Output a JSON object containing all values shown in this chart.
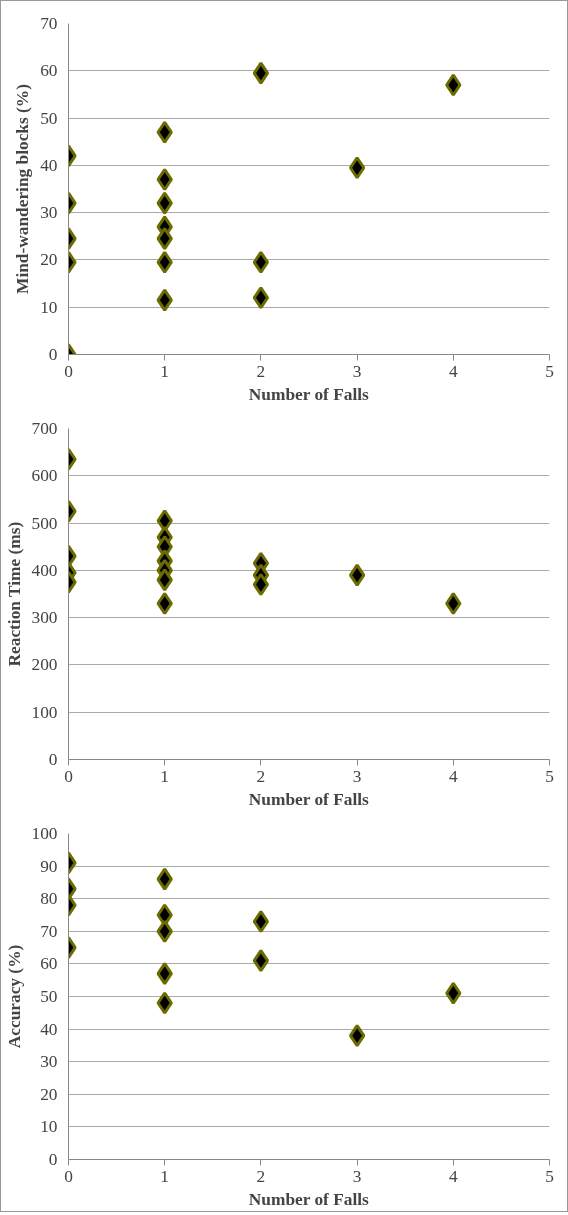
{
  "chart_data": [
    {
      "type": "scatter",
      "xlabel": "Number of Falls",
      "ylabel": "Mind-wandering blocks (%)",
      "xlim": [
        0,
        5
      ],
      "xticks": [
        0,
        1,
        2,
        3,
        4,
        5
      ],
      "ylim": [
        0,
        70
      ],
      "yticks": [
        0,
        10,
        20,
        30,
        40,
        50,
        60,
        70
      ],
      "grid": "y",
      "marker": "diamond",
      "series": [
        {
          "color": "#000000",
          "x": [
            0,
            0,
            0,
            0,
            0,
            1,
            1,
            1,
            1,
            1,
            1,
            1,
            2,
            2,
            2,
            3,
            4
          ],
          "values": [
            42,
            32,
            24.5,
            19.5,
            0,
            47,
            37,
            32,
            27,
            24.5,
            19.5,
            11.5,
            59.5,
            19.5,
            12,
            39.5,
            57
          ]
        }
      ]
    },
    {
      "type": "scatter",
      "xlabel": "Number of Falls",
      "ylabel": "Reaction Time (ms)",
      "xlim": [
        0,
        5
      ],
      "xticks": [
        0,
        1,
        2,
        3,
        4,
        5
      ],
      "ylim": [
        0,
        700
      ],
      "yticks": [
        0,
        100,
        200,
        300,
        400,
        500,
        600,
        700
      ],
      "grid": "y",
      "marker": "diamond",
      "series": [
        {
          "color": "#000000",
          "x": [
            0,
            0,
            0,
            0,
            0,
            1,
            1,
            1,
            1,
            1,
            1,
            1,
            2,
            2,
            2,
            3,
            4
          ],
          "values": [
            635,
            525,
            430,
            395,
            375,
            505,
            470,
            450,
            420,
            400,
            380,
            330,
            415,
            390,
            370,
            390,
            330
          ]
        }
      ]
    },
    {
      "type": "scatter",
      "xlabel": "Number of Falls",
      "ylabel": "Accuracy (%)",
      "xlim": [
        0,
        5
      ],
      "xticks": [
        0,
        1,
        2,
        3,
        4,
        5
      ],
      "ylim": [
        0,
        100
      ],
      "yticks": [
        0,
        10,
        20,
        30,
        40,
        50,
        60,
        70,
        80,
        90,
        100
      ],
      "grid": "y",
      "marker": "diamond",
      "series": [
        {
          "color": "#000000",
          "x": [
            0,
            0,
            0,
            0,
            1,
            1,
            1,
            1,
            1,
            2,
            2,
            3,
            4
          ],
          "values": [
            91,
            83,
            78,
            65,
            86,
            75,
            70,
            57,
            48,
            73,
            61,
            38,
            51
          ]
        }
      ]
    }
  ]
}
